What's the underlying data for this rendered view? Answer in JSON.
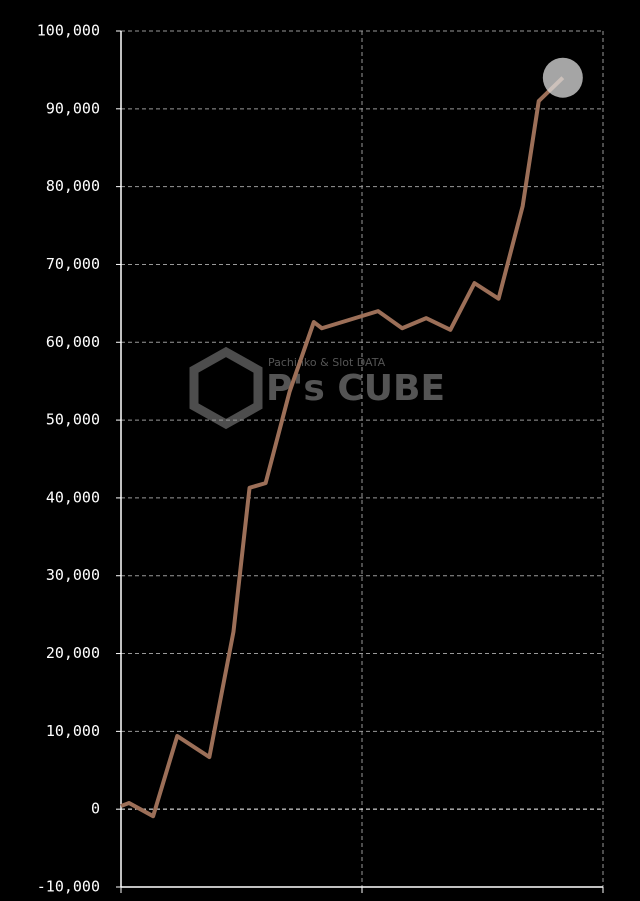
{
  "chart_data": {
    "type": "line",
    "watermark": {
      "title": "P's CUBE",
      "subtitle": "Pachinko & Slot DATA"
    },
    "x": [
      0,
      1,
      4,
      7,
      11,
      14,
      16,
      18,
      21,
      24,
      25,
      32,
      35,
      38,
      41,
      44,
      47,
      50,
      52,
      55
    ],
    "series": [
      {
        "color": "#9c6f58",
        "values": [
          400,
          800,
          -900,
          9400,
          6700,
          22800,
          41300,
          41900,
          53700,
          62600,
          61800,
          64000,
          61800,
          63100,
          61600,
          67600,
          65600,
          77500,
          91000,
          94000
        ]
      }
    ],
    "xlim": [
      0,
      60
    ],
    "ylim": [
      -10000,
      100000
    ],
    "yticks": [
      {
        "value": -10000,
        "label": "-10,000"
      },
      0,
      {
        "value": 10000,
        "label": "10,000"
      },
      {
        "value": 20000,
        "label": "20,000"
      },
      {
        "value": 30000,
        "label": "30,000"
      },
      {
        "value": 40000,
        "label": "40,000"
      },
      {
        "value": 50000,
        "label": "50,000"
      },
      {
        "value": 60000,
        "label": "60,000"
      },
      {
        "value": 70000,
        "label": "70,000"
      },
      {
        "value": 80000,
        "label": "80,000"
      },
      {
        "value": 90000,
        "label": "90,000"
      },
      {
        "value": 100000,
        "label": "100,000"
      }
    ],
    "grid": true
  }
}
